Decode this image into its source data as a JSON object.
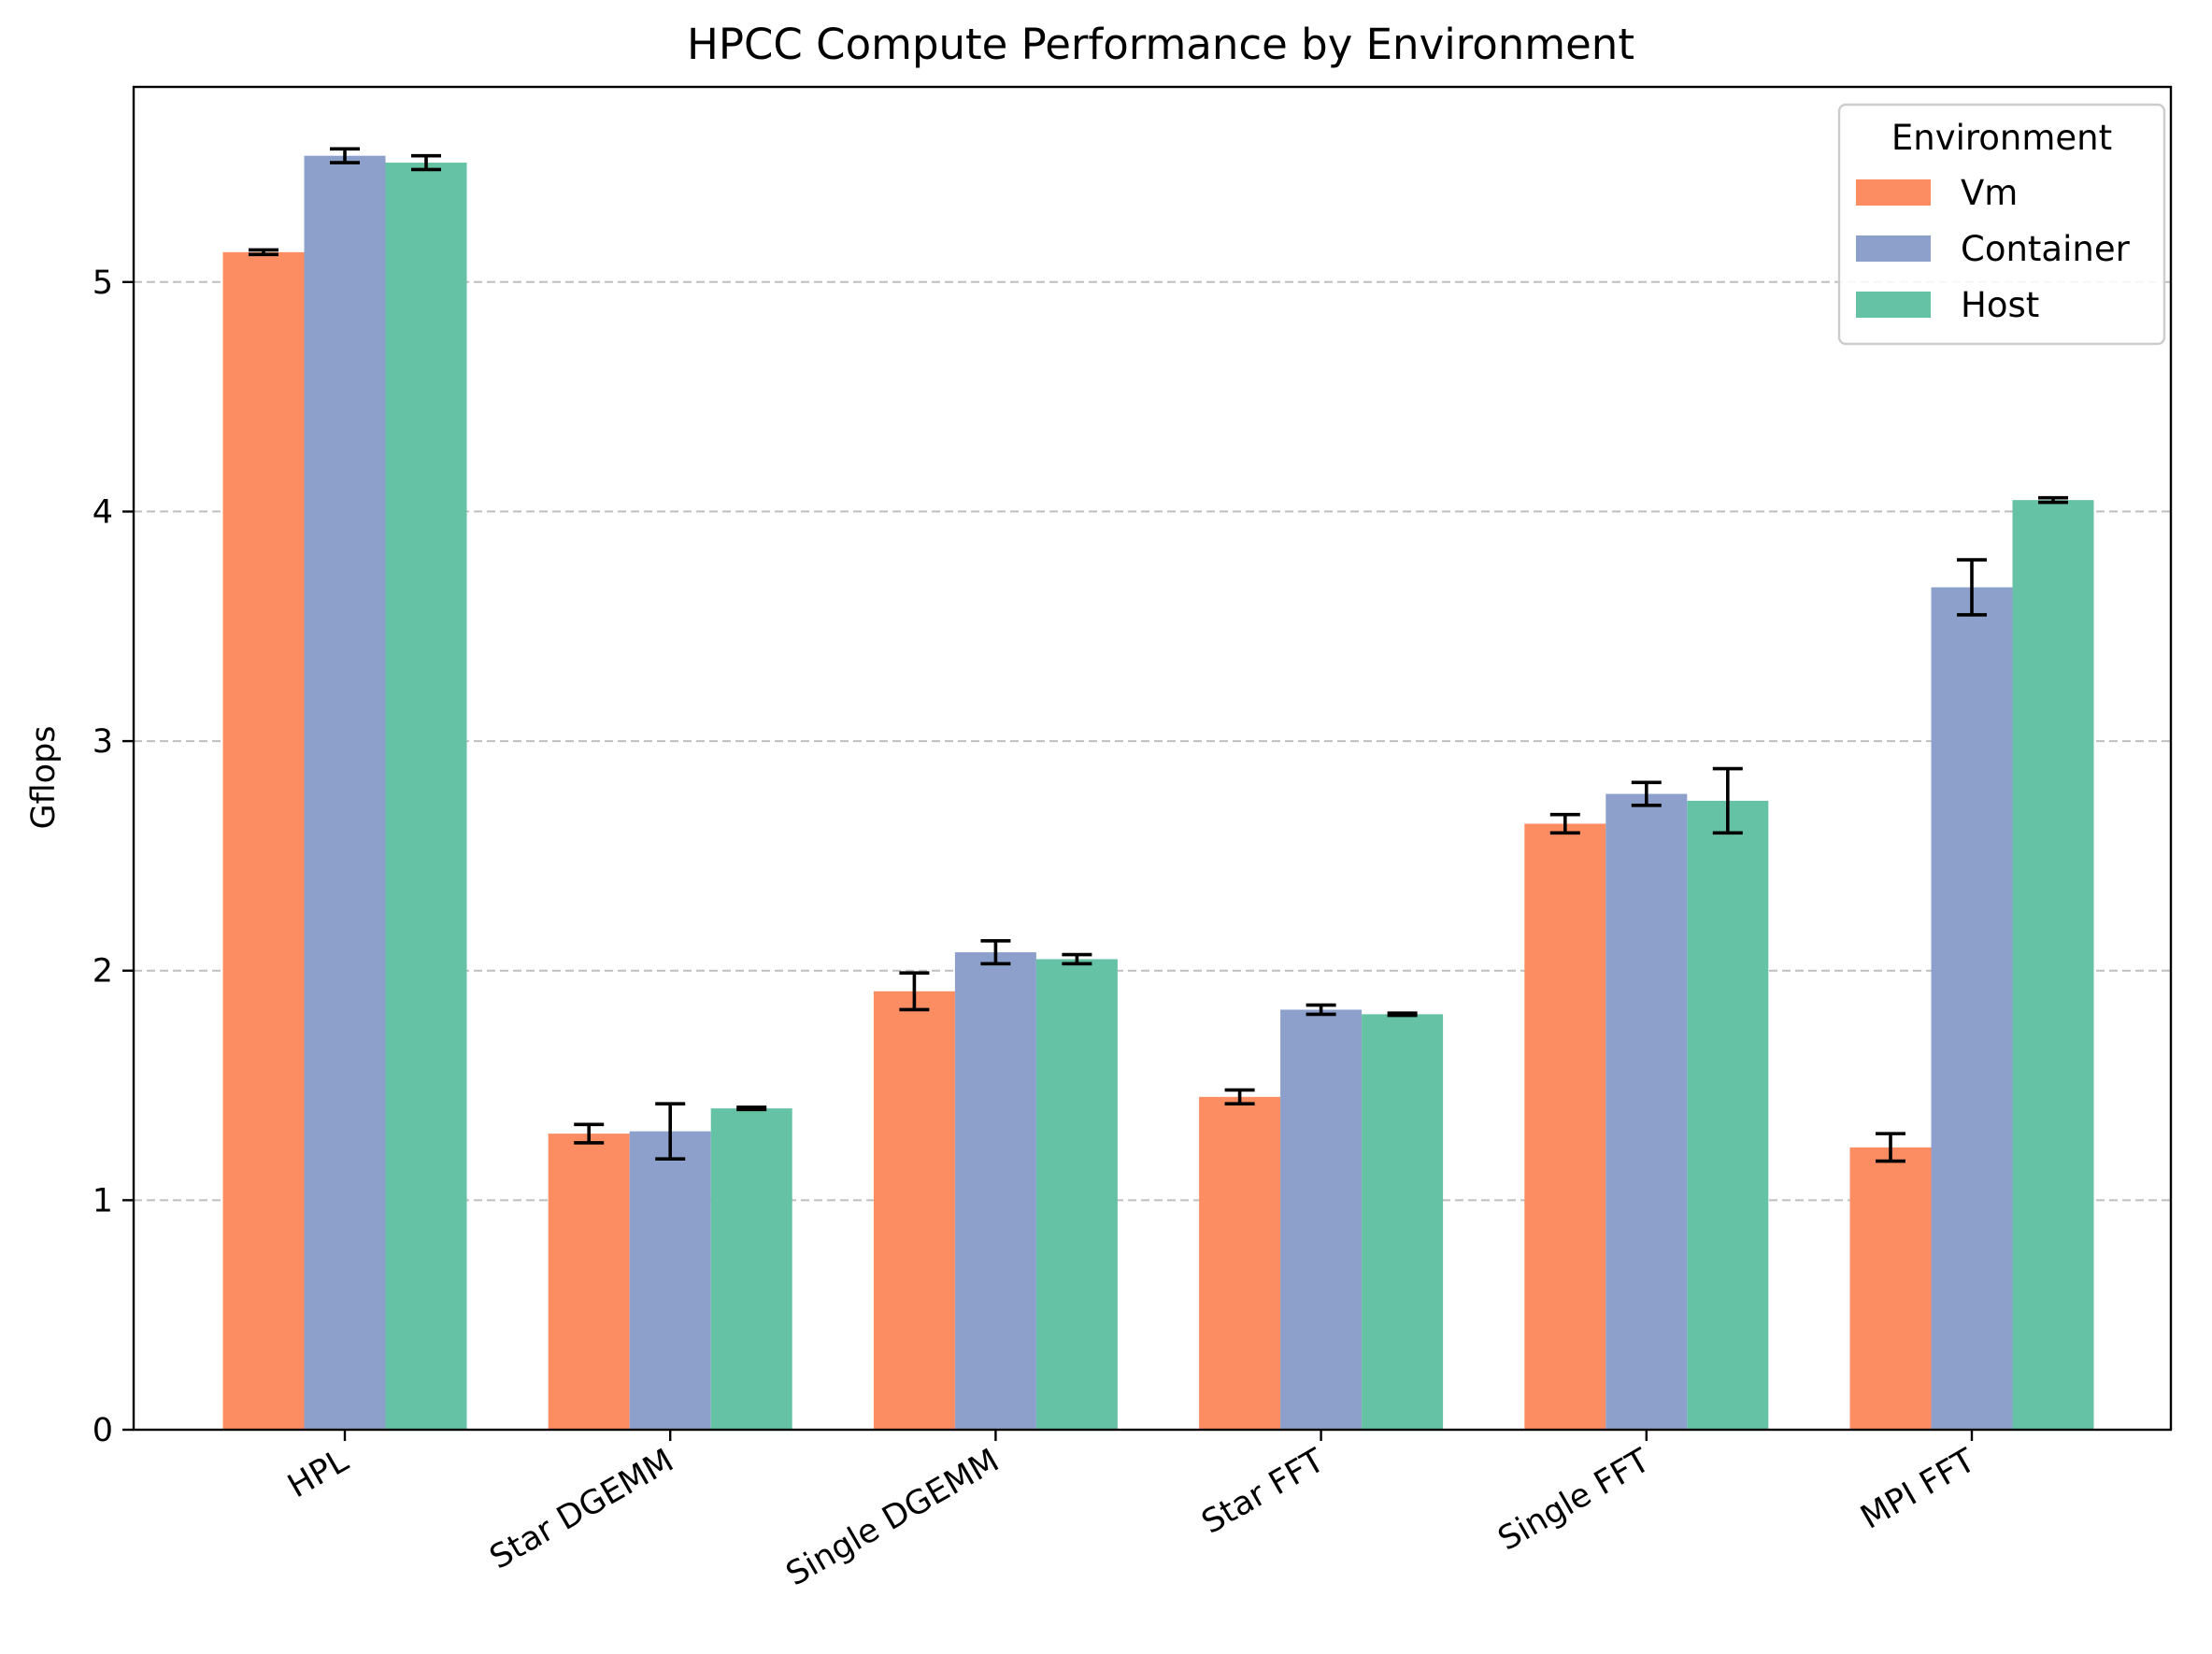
{
  "chart_data": {
    "type": "bar",
    "title": "HPCC Compute Performance by Environment",
    "xlabel": "",
    "ylabel": "Gflops",
    "ylim": [
      0,
      5.85
    ],
    "yticks": [
      "0",
      "1",
      "2",
      "3",
      "4",
      "5"
    ],
    "grid": "y-dashed",
    "categories": [
      "HPL",
      "Star DGEMM",
      "Single DGEMM",
      "Star FFT",
      "Single FFT",
      "MPI FFT"
    ],
    "legend": {
      "title": "Environment",
      "placement": "top-right"
    },
    "series": [
      {
        "name": "Vm",
        "color": "#fc8d62",
        "values": [
          5.13,
          1.29,
          1.91,
          1.45,
          2.64,
          1.23
        ],
        "errors": [
          0.01,
          0.04,
          0.08,
          0.03,
          0.04,
          0.06
        ]
      },
      {
        "name": "Container",
        "color": "#8da0cb",
        "values": [
          5.55,
          1.3,
          2.08,
          1.83,
          2.77,
          3.67
        ],
        "errors": [
          0.03,
          0.12,
          0.05,
          0.02,
          0.05,
          0.12
        ]
      },
      {
        "name": "Host",
        "color": "#66c2a5",
        "values": [
          5.52,
          1.4,
          2.05,
          1.81,
          2.74,
          4.05
        ],
        "errors": [
          0.03,
          0.005,
          0.02,
          0.005,
          0.14,
          0.01
        ]
      }
    ]
  }
}
